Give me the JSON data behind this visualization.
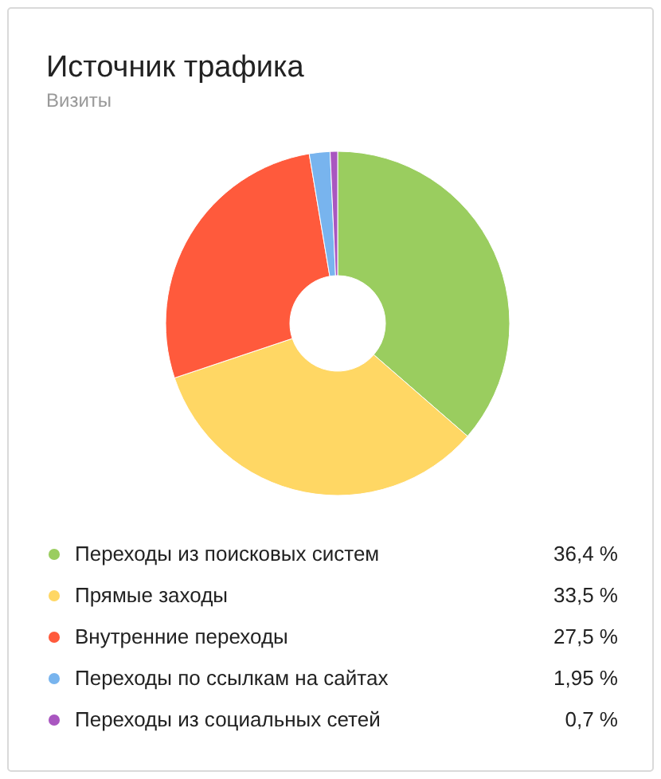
{
  "chart_data": {
    "type": "donut",
    "title": "Источник трафика",
    "subtitle": "Визиты",
    "categories": [
      "Переходы из поисковых систем",
      "Прямые заходы",
      "Внутренние переходы",
      "Переходы по ссылкам на сайтах",
      "Переходы из социальных сетей"
    ],
    "values": [
      36.4,
      33.5,
      27.5,
      1.95,
      0.7
    ],
    "colors": [
      "#9acd5f",
      "#ffd764",
      "#ff5a3c",
      "#78b4ee",
      "#a956c0"
    ],
    "value_labels": [
      "36,4 %",
      "33,5 %",
      "27,5 %",
      "1,95 %",
      "0,7 %"
    ],
    "legend": "bottom"
  }
}
